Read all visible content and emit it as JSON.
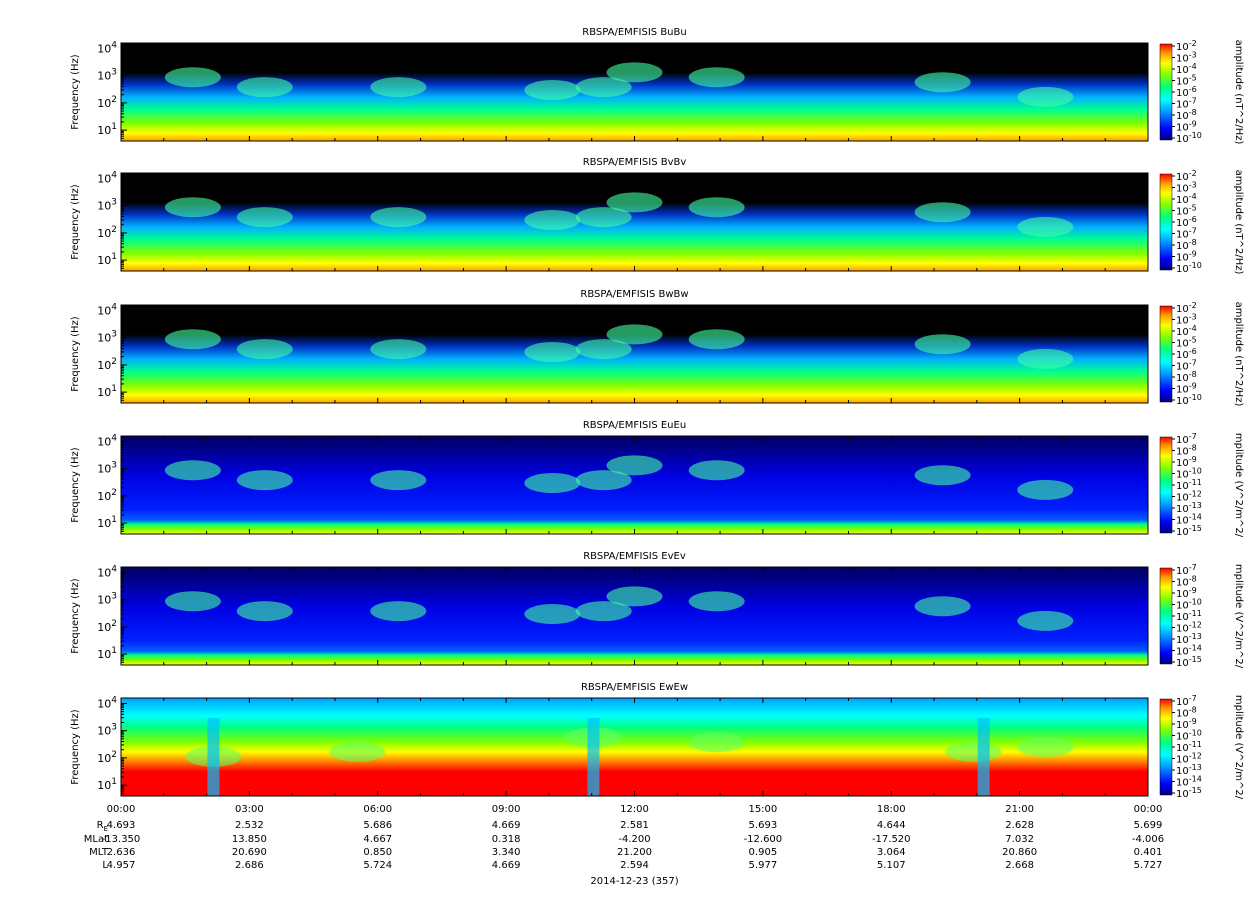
{
  "chart_data": [
    {
      "type": "heatmap",
      "title": "RBSPA/EMFISIS  BuBu",
      "ylabel": "Frequency (Hz)",
      "yscale": "log",
      "yticks": [
        {
          "exp": "1"
        },
        {
          "exp": "2"
        },
        {
          "exp": "3"
        },
        {
          "exp": "4"
        }
      ],
      "colorbar_label": "amplitude (nT^2/Hz)",
      "colorbar_ticks": [
        "-2",
        "-3",
        "-4",
        "-5",
        "-6",
        "-7",
        "-8",
        "-9",
        "-10"
      ]
    },
    {
      "type": "heatmap",
      "title": "RBSPA/EMFISIS  BvBv",
      "ylabel": "Frequency (Hz)",
      "yscale": "log",
      "yticks": [
        {
          "exp": "1"
        },
        {
          "exp": "2"
        },
        {
          "exp": "3"
        },
        {
          "exp": "4"
        }
      ],
      "colorbar_label": "amplitude (nT^2/Hz)",
      "colorbar_ticks": [
        "-2",
        "-3",
        "-4",
        "-5",
        "-6",
        "-7",
        "-8",
        "-9",
        "-10"
      ]
    },
    {
      "type": "heatmap",
      "title": "RBSPA/EMFISIS  BwBw",
      "ylabel": "Frequency (Hz)",
      "yscale": "log",
      "yticks": [
        {
          "exp": "1"
        },
        {
          "exp": "2"
        },
        {
          "exp": "3"
        },
        {
          "exp": "4"
        }
      ],
      "colorbar_label": "amplitude (nT^2/Hz)",
      "colorbar_ticks": [
        "-2",
        "-3",
        "-4",
        "-5",
        "-6",
        "-7",
        "-8",
        "-9",
        "-10"
      ]
    },
    {
      "type": "heatmap",
      "title": "RBSPA/EMFISIS  EuEu",
      "ylabel": "Frequency (Hz)",
      "yscale": "log",
      "yticks": [
        {
          "exp": "1"
        },
        {
          "exp": "2"
        },
        {
          "exp": "3"
        },
        {
          "exp": "4"
        }
      ],
      "colorbar_label": "mplitude (V^2/m^2/",
      "colorbar_ticks": [
        "-7",
        "-8",
        "-9",
        "-10",
        "-11",
        "-12",
        "-13",
        "-14",
        "-15"
      ]
    },
    {
      "type": "heatmap",
      "title": "RBSPA/EMFISIS  EvEv",
      "ylabel": "Frequency (Hz)",
      "yscale": "log",
      "yticks": [
        {
          "exp": "1"
        },
        {
          "exp": "2"
        },
        {
          "exp": "3"
        },
        {
          "exp": "4"
        }
      ],
      "colorbar_label": "mplitude (V^2/m^2/",
      "colorbar_ticks": [
        "-7",
        "-8",
        "-9",
        "-10",
        "-11",
        "-12",
        "-13",
        "-14",
        "-15"
      ]
    },
    {
      "type": "heatmap",
      "title": "RBSPA/EMFISIS  EwEw",
      "ylabel": "Frequency (Hz)",
      "yscale": "log",
      "yticks": [
        {
          "exp": "1"
        },
        {
          "exp": "2"
        },
        {
          "exp": "3"
        },
        {
          "exp": "4"
        }
      ],
      "colorbar_label": "mplitude (V^2/m^2/",
      "colorbar_ticks": [
        "-7",
        "-8",
        "-9",
        "-10",
        "-11",
        "-12",
        "-13",
        "-14",
        "-15"
      ]
    }
  ],
  "x_axis": {
    "tick_labels": [
      "00:00",
      "03:00",
      "06:00",
      "09:00",
      "12:00",
      "15:00",
      "18:00",
      "21:00",
      "00:00"
    ],
    "date_label": "2014-12-23 (357)"
  },
  "ephemeris": [
    {
      "label": "R",
      "subscript": "E",
      "values": [
        "4.693",
        "2.532",
        "5.686",
        "4.669",
        "2.581",
        "5.693",
        "4.644",
        "2.628",
        "5.699"
      ]
    },
    {
      "label": "MLat",
      "values": [
        "-13.350",
        "13.850",
        "4.667",
        "0.318",
        "-4.200",
        "-12.600",
        "-17.520",
        "7.032",
        "-4.006"
      ]
    },
    {
      "label": "MLT",
      "values": [
        "2.636",
        "20.690",
        "0.850",
        "3.340",
        "21.200",
        "0.905",
        "3.064",
        "20.860",
        "0.401"
      ]
    },
    {
      "label": "L",
      "values": [
        "4.957",
        "2.686",
        "5.724",
        "4.669",
        "2.594",
        "5.977",
        "5.107",
        "2.668",
        "5.727"
      ]
    }
  ],
  "colors": {
    "colormap": [
      "#000080",
      "#0000ff",
      "#00a0ff",
      "#00ffff",
      "#00ff80",
      "#80ff00",
      "#ffff00",
      "#ffa000",
      "#ff0000"
    ],
    "background_dark": "#000000"
  }
}
